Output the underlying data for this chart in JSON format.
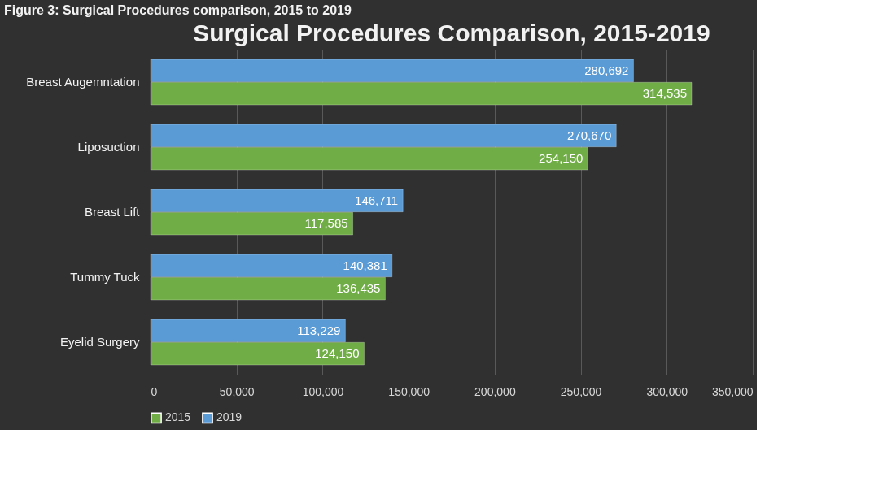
{
  "chart_data": {
    "type": "bar",
    "orientation": "horizontal",
    "title": "Surgical Procedures Comparison, 2015-2019",
    "annotations": [
      "Figure 3: Surgical Procedures comparison, 2015 to 2019"
    ],
    "categories": [
      "Breast Augemntation",
      "Liposuction",
      "Breast Lift",
      "Tummy Tuck",
      "Eyelid Surgery"
    ],
    "series": [
      {
        "name": "2015",
        "color": "#70ad47",
        "values": [
          314535,
          254150,
          117585,
          136435,
          124150
        ],
        "value_labels": [
          "314,535",
          "254,150",
          "117,585",
          "136,435",
          "124,150"
        ]
      },
      {
        "name": "2019",
        "color": "#5b9bd5",
        "values": [
          280692,
          270670,
          146711,
          140381,
          113229
        ],
        "value_labels": [
          "280,692",
          "270,670",
          "146,711",
          "140,381",
          "113,229"
        ]
      }
    ],
    "xlim": [
      0,
      350000
    ],
    "xticks": [
      {
        "value": 0,
        "label": "0"
      },
      {
        "value": 50000,
        "label": "50,000"
      },
      {
        "value": 100000,
        "label": "100,000"
      },
      {
        "value": 150000,
        "label": "150,000"
      },
      {
        "value": 200000,
        "label": "200,000"
      },
      {
        "value": 250000,
        "label": "250,000"
      },
      {
        "value": 300000,
        "label": "300,000"
      },
      {
        "value": 350000,
        "label": "350,000"
      }
    ],
    "grid": "x",
    "legend": "bottom"
  }
}
